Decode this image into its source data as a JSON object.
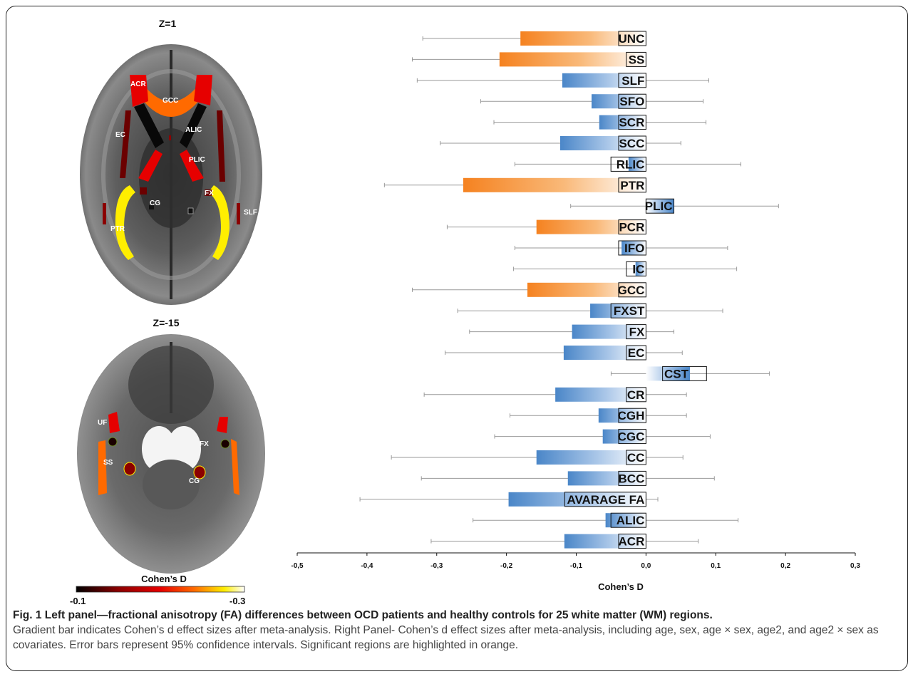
{
  "left_panel": {
    "slice_top": "Z=1",
    "slice_bottom": "Z=-15",
    "labels_top": [
      "ACR",
      "GCC",
      "EC",
      "ALIC",
      "PLIC",
      "FX",
      "CG",
      "SLF",
      "PTR"
    ],
    "labels_bottom": [
      "UF",
      "FX",
      "SS",
      "CG"
    ],
    "colorbar": {
      "title": "Cohen’s D",
      "min_label": "-0.1",
      "max_label": "-0.3",
      "colors": [
        "#000000",
        "#8b0000",
        "#e60000",
        "#ff6a00",
        "#ffee00",
        "#ffffff"
      ]
    }
  },
  "chart_data": {
    "type": "bar",
    "orientation": "horizontal",
    "xlabel": "Cohen’s D",
    "xlim": [
      -0.5,
      0.3
    ],
    "xticks": [
      "-0,5",
      "-0,4",
      "-0,3",
      "-0,2",
      "-0,1",
      "0,0",
      "0,1",
      "0,2",
      "0,3"
    ],
    "xtick_values": [
      -0.5,
      -0.4,
      -0.3,
      -0.2,
      -0.1,
      0.0,
      0.1,
      0.2,
      0.3
    ],
    "significant_color": "#f58220",
    "normal_color": "#4a86c8",
    "bars": [
      {
        "label": "UNC",
        "value": -0.18,
        "ci_low": -0.32,
        "ci_high": -0.105,
        "significant": true
      },
      {
        "label": "SS",
        "value": -0.21,
        "ci_low": -0.335,
        "ci_high": -0.08,
        "significant": true
      },
      {
        "label": "SLF",
        "value": -0.12,
        "ci_low": -0.328,
        "ci_high": 0.09,
        "significant": false
      },
      {
        "label": "SFO",
        "value": -0.078,
        "ci_low": -0.237,
        "ci_high": 0.082,
        "significant": false
      },
      {
        "label": "SCR",
        "value": -0.067,
        "ci_low": -0.218,
        "ci_high": 0.086,
        "significant": false
      },
      {
        "label": "SCC",
        "value": -0.123,
        "ci_low": -0.295,
        "ci_high": 0.05,
        "significant": false
      },
      {
        "label": "RLIC",
        "value": -0.025,
        "ci_low": -0.188,
        "ci_high": 0.136,
        "significant": false
      },
      {
        "label": "PTR",
        "value": -0.262,
        "ci_low": -0.375,
        "ci_high": -0.15,
        "significant": true
      },
      {
        "label": "PLIC",
        "value": 0.04,
        "ci_low": -0.108,
        "ci_high": 0.19,
        "significant": false
      },
      {
        "label": "PCR",
        "value": -0.157,
        "ci_low": -0.285,
        "ci_high": -0.03,
        "significant": true
      },
      {
        "label": "IFO",
        "value": -0.035,
        "ci_low": -0.188,
        "ci_high": 0.117,
        "significant": false
      },
      {
        "label": "IC",
        "value": -0.015,
        "ci_low": -0.19,
        "ci_high": 0.13,
        "significant": false
      },
      {
        "label": "GCC",
        "value": -0.17,
        "ci_low": -0.335,
        "ci_high": -0.005,
        "significant": true
      },
      {
        "label": "FXST",
        "value": -0.08,
        "ci_low": -0.27,
        "ci_high": 0.11,
        "significant": false
      },
      {
        "label": "FX",
        "value": -0.106,
        "ci_low": -0.253,
        "ci_high": 0.04,
        "significant": false
      },
      {
        "label": "EC",
        "value": -0.118,
        "ci_low": -0.288,
        "ci_high": 0.052,
        "significant": false
      },
      {
        "label": "CST",
        "value": 0.063,
        "ci_low": -0.05,
        "ci_high": 0.177,
        "significant": false
      },
      {
        "label": "CR",
        "value": -0.13,
        "ci_low": -0.318,
        "ci_high": 0.058,
        "significant": false
      },
      {
        "label": "CGH",
        "value": -0.068,
        "ci_low": -0.195,
        "ci_high": 0.058,
        "significant": false
      },
      {
        "label": "CGC",
        "value": -0.062,
        "ci_low": -0.217,
        "ci_high": 0.092,
        "significant": false
      },
      {
        "label": "CC",
        "value": -0.157,
        "ci_low": -0.365,
        "ci_high": 0.053,
        "significant": false
      },
      {
        "label": "BCC",
        "value": -0.112,
        "ci_low": -0.322,
        "ci_high": 0.098,
        "significant": false
      },
      {
        "label": "AVARAGE FA",
        "value": -0.197,
        "ci_low": -0.41,
        "ci_high": 0.017,
        "significant": false
      },
      {
        "label": "ALIC",
        "value": -0.058,
        "ci_low": -0.248,
        "ci_high": 0.132,
        "significant": false
      },
      {
        "label": "ACR",
        "value": -0.117,
        "ci_low": -0.308,
        "ci_high": 0.075,
        "significant": false
      }
    ]
  },
  "caption": {
    "title": "Fig. 1 Left panel—fractional anisotropy (FA) differences between OCD patients and healthy controls for 25 white matter (WM) regions.",
    "body": "Gradient bar indicates Cohen’s d effect sizes after meta-analysis. Right Panel- Cohen’s d effect sizes after meta-analysis, including age, sex, age × sex, age2, and age2 × sex as covariates. Error bars represent 95% confidence intervals. Significant regions are highlighted in orange."
  }
}
